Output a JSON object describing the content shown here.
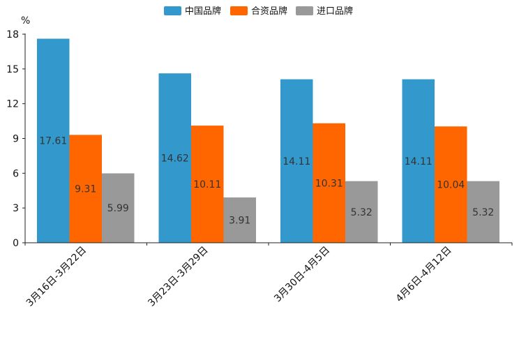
{
  "chart_data": {
    "type": "bar",
    "title": "",
    "xlabel": "",
    "ylabel": "%",
    "ylim": [
      0,
      18
    ],
    "yticks": [
      0,
      3,
      6,
      9,
      12,
      15,
      18
    ],
    "grid": false,
    "legend_position": "top-center",
    "categories": [
      "3月16日-3月22日",
      "3月23日-3月29日",
      "3月30日-4月5日",
      "4月6日-4月12日"
    ],
    "series": [
      {
        "name": "中国品牌",
        "color": "#3399cc",
        "values": [
          17.61,
          14.62,
          14.11,
          14.11
        ],
        "labels": [
          "17.61",
          "14.62",
          "14.11",
          "14.11"
        ]
      },
      {
        "name": "合资品牌",
        "color": "#ff6600",
        "values": [
          9.31,
          10.11,
          10.31,
          10.04
        ],
        "labels": [
          "9.31",
          "10.11",
          "10.31",
          "10.04"
        ]
      },
      {
        "name": "进口品牌",
        "color": "#999999",
        "values": [
          5.99,
          3.91,
          5.32,
          5.32
        ],
        "labels": [
          "5.99",
          "3.91",
          "5.32",
          "5.32"
        ]
      }
    ]
  }
}
